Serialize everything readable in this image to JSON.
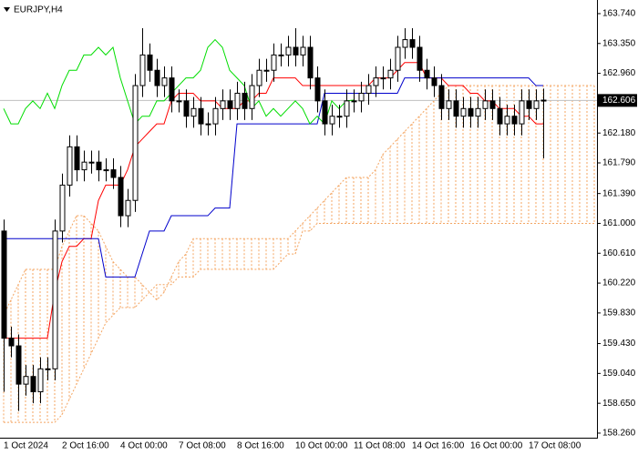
{
  "chart_data": {
    "type": "candlestick",
    "title": "EURJPY,H4",
    "categories": [
      "1 Oct 2024",
      null,
      null,
      null,
      null,
      null,
      null,
      null,
      "2 Oct 16:00",
      null,
      null,
      null,
      null,
      null,
      null,
      null,
      "4 Oct 00:00",
      null,
      null,
      null,
      null,
      null,
      null,
      null,
      "7 Oct 08:00",
      null,
      null,
      null,
      null,
      null,
      null,
      null,
      "8 Oct 16:00",
      null,
      null,
      null,
      null,
      null,
      null,
      null,
      "10 Oct 00:00",
      null,
      null,
      null,
      null,
      null,
      null,
      null,
      "11 Oct 08:00",
      null,
      null,
      null,
      null,
      null,
      null,
      null,
      "14 Oct 16:00",
      null,
      null,
      null,
      null,
      null,
      null,
      null,
      "16 Oct 00:00",
      null,
      null,
      null,
      null,
      null,
      null,
      null,
      "17 Oct 08:00",
      null,
      null,
      null,
      null,
      null,
      null,
      null,
      null,
      null
    ],
    "open": [
      160.9,
      159.5,
      159.4,
      158.9,
      159.0,
      158.8,
      159.1,
      159.1,
      160.9,
      161.5,
      162.0,
      161.7,
      161.8,
      161.8,
      161.7,
      161.7,
      161.6,
      161.1,
      161.3,
      162.8,
      163.2,
      163.0,
      162.8,
      162.9,
      162.6,
      162.6,
      162.4,
      162.5,
      162.3,
      162.3,
      162.5,
      162.6,
      162.5,
      162.7,
      162.5,
      162.8,
      163.0,
      163.0,
      163.2,
      163.2,
      163.3,
      163.2,
      163.3,
      162.9,
      162.6,
      162.3,
      162.4,
      162.4,
      162.6,
      162.6,
      162.7,
      162.8,
      162.9,
      162.9,
      163.0,
      163.3,
      163.4,
      163.3,
      163.0,
      162.9,
      162.8,
      162.5,
      162.6,
      162.4,
      162.5,
      162.4,
      162.5,
      162.6,
      162.5,
      162.3,
      162.4,
      162.3,
      162.6,
      162.5,
      162.6,
      null,
      null,
      null,
      null,
      null,
      null,
      null
    ],
    "high": [
      161.05,
      159.65,
      159.55,
      159.15,
      159.15,
      159.25,
      159.25,
      161.05,
      161.65,
      162.15,
      162.15,
      161.95,
      161.95,
      161.95,
      161.85,
      161.85,
      161.75,
      161.45,
      162.95,
      163.55,
      163.35,
      163.15,
      163.05,
      163.05,
      162.75,
      162.75,
      162.65,
      162.65,
      162.45,
      162.65,
      162.75,
      162.75,
      162.85,
      162.85,
      162.95,
      163.15,
      163.15,
      163.35,
      163.35,
      163.45,
      163.55,
      163.45,
      163.45,
      163.05,
      162.75,
      162.55,
      162.55,
      162.75,
      162.75,
      162.85,
      162.95,
      163.05,
      163.05,
      163.15,
      163.45,
      163.55,
      163.55,
      163.45,
      163.15,
      163.05,
      162.95,
      162.75,
      162.75,
      162.65,
      162.65,
      162.65,
      162.75,
      162.75,
      162.65,
      162.55,
      162.55,
      162.75,
      162.75,
      162.75,
      162.76,
      null,
      null,
      null,
      null,
      null,
      null,
      null
    ],
    "low": [
      158.8,
      159.25,
      158.55,
      158.75,
      158.65,
      158.65,
      158.95,
      158.95,
      160.75,
      161.35,
      161.55,
      161.55,
      161.65,
      161.55,
      161.55,
      161.45,
      160.95,
      160.95,
      161.15,
      162.65,
      162.85,
      162.65,
      162.65,
      162.45,
      162.45,
      162.25,
      162.25,
      162.15,
      162.15,
      162.15,
      162.35,
      162.35,
      162.35,
      162.35,
      162.35,
      162.65,
      162.85,
      162.85,
      163.05,
      163.05,
      163.05,
      163.05,
      162.75,
      162.45,
      162.15,
      162.15,
      162.25,
      162.25,
      162.45,
      162.45,
      162.55,
      162.65,
      162.75,
      162.75,
      162.85,
      163.15,
      163.15,
      162.85,
      162.75,
      162.65,
      162.35,
      162.35,
      162.25,
      162.25,
      162.25,
      162.25,
      162.35,
      162.35,
      162.15,
      162.15,
      162.15,
      162.15,
      162.35,
      162.35,
      161.85,
      null,
      null,
      null,
      null,
      null,
      null,
      null
    ],
    "close": [
      159.5,
      159.4,
      158.9,
      159.0,
      158.8,
      159.1,
      159.1,
      160.9,
      161.5,
      162.0,
      161.7,
      161.8,
      161.8,
      161.7,
      161.7,
      161.6,
      161.1,
      161.3,
      162.8,
      163.2,
      163.0,
      162.8,
      162.9,
      162.6,
      162.6,
      162.4,
      162.5,
      162.3,
      162.3,
      162.5,
      162.6,
      162.5,
      162.7,
      162.5,
      162.8,
      163.0,
      163.0,
      163.2,
      163.2,
      163.3,
      163.2,
      163.3,
      162.9,
      162.6,
      162.3,
      162.4,
      162.4,
      162.6,
      162.6,
      162.7,
      162.8,
      162.9,
      162.9,
      163.0,
      163.3,
      163.4,
      163.3,
      163.0,
      162.9,
      162.8,
      162.5,
      162.6,
      162.4,
      162.5,
      162.4,
      162.5,
      162.6,
      162.5,
      162.3,
      162.4,
      162.3,
      162.6,
      162.5,
      162.6,
      162.61,
      null,
      null,
      null,
      null,
      null,
      null,
      null
    ],
    "up_color": "#ffffff",
    "down_color": "#000000",
    "lines": [
      {
        "color": "#ff0000",
        "values": [
          159.5,
          159.5,
          159.5,
          159.5,
          159.5,
          159.5,
          159.5,
          160.1,
          160.5,
          160.7,
          160.7,
          160.8,
          160.8,
          161.3,
          161.5,
          161.5,
          161.5,
          161.7,
          162.0,
          162.1,
          162.2,
          162.3,
          162.3,
          162.6,
          162.7,
          162.7,
          162.7,
          162.6,
          162.6,
          162.6,
          162.5,
          162.5,
          162.5,
          162.6,
          162.6,
          162.7,
          162.7,
          162.9,
          162.9,
          162.9,
          162.9,
          162.8,
          162.8,
          162.8,
          162.8,
          162.8,
          162.8,
          162.8,
          162.8,
          162.8,
          162.8,
          162.9,
          162.9,
          162.9,
          163.0,
          163.1,
          163.1,
          163.1,
          162.9,
          162.9,
          162.9,
          162.8,
          162.8,
          162.8,
          162.7,
          162.7,
          162.6,
          162.6,
          162.5,
          162.5,
          162.5,
          162.4,
          162.4,
          162.3,
          162.3,
          null,
          null,
          null,
          null,
          null,
          null,
          null
        ]
      },
      {
        "color": "#0000cc",
        "values": [
          160.8,
          160.8,
          160.8,
          160.8,
          160.8,
          160.8,
          160.8,
          160.8,
          160.8,
          160.8,
          160.8,
          160.8,
          160.8,
          160.8,
          160.3,
          160.3,
          160.3,
          160.3,
          160.3,
          160.6,
          160.9,
          160.9,
          160.9,
          161.1,
          161.1,
          161.1,
          161.1,
          161.1,
          161.1,
          161.2,
          161.2,
          161.2,
          162.3,
          162.3,
          162.3,
          162.3,
          162.3,
          162.3,
          162.3,
          162.3,
          162.3,
          162.3,
          162.3,
          162.3,
          162.7,
          162.7,
          162.7,
          162.7,
          162.7,
          162.7,
          162.7,
          162.7,
          162.7,
          162.7,
          162.7,
          162.9,
          162.9,
          162.9,
          162.9,
          162.9,
          162.9,
          162.9,
          162.9,
          162.9,
          162.9,
          162.9,
          162.9,
          162.9,
          162.9,
          162.9,
          162.9,
          162.9,
          162.9,
          162.8,
          162.8,
          null,
          null,
          null,
          null,
          null,
          null,
          null
        ]
      },
      {
        "color": "#00dd00",
        "values": [
          162.5,
          162.3,
          162.3,
          162.5,
          162.6,
          162.5,
          162.7,
          162.5,
          162.8,
          163.0,
          163.0,
          163.2,
          163.2,
          163.3,
          163.2,
          163.3,
          162.9,
          162.6,
          162.3,
          162.4,
          162.4,
          162.6,
          162.6,
          162.7,
          162.8,
          162.9,
          162.9,
          163.0,
          163.3,
          163.4,
          163.3,
          163.0,
          162.9,
          162.8,
          162.5,
          162.6,
          162.4,
          162.5,
          162.4,
          162.5,
          162.6,
          162.5,
          162.3,
          162.4,
          162.3,
          162.6,
          162.5,
          162.6,
          162.61,
          null,
          null,
          null,
          null,
          null,
          null,
          null,
          null,
          null,
          null,
          null,
          null,
          null,
          null,
          null,
          null,
          null,
          null,
          null,
          null,
          null,
          null,
          null,
          null,
          null,
          null,
          null,
          null,
          null,
          null,
          null,
          null,
          null
        ]
      }
    ],
    "cloud": {
      "color": "#f4a460",
      "span_a": [
        159.8,
        160.0,
        160.2,
        160.4,
        160.4,
        160.4,
        160.4,
        160.4,
        160.7,
        160.9,
        161.1,
        161.1,
        161.0,
        160.9,
        160.7,
        160.5,
        160.4,
        160.3,
        160.3,
        160.2,
        160.1,
        160.0,
        160.1,
        160.3,
        160.5,
        160.6,
        160.8,
        160.8,
        160.8,
        160.8,
        160.8,
        160.8,
        160.8,
        160.8,
        160.8,
        160.8,
        160.8,
        160.8,
        160.8,
        160.8,
        160.9,
        161.0,
        161.1,
        161.2,
        161.3,
        161.4,
        161.5,
        161.6,
        161.6,
        161.6,
        161.6,
        161.7,
        161.9,
        162.0,
        162.1,
        162.2,
        162.3,
        162.4,
        162.5,
        162.6,
        162.7,
        162.8,
        162.8,
        162.8,
        162.8,
        162.8,
        162.8,
        162.8,
        162.8,
        162.8,
        162.8,
        162.8,
        162.8,
        162.8,
        162.8,
        162.8,
        162.8,
        162.8,
        162.8,
        162.8,
        162.8,
        162.8
      ],
      "span_b": [
        158.4,
        158.4,
        158.4,
        158.4,
        158.4,
        158.4,
        158.4,
        158.4,
        158.5,
        158.7,
        158.9,
        159.1,
        159.3,
        159.5,
        159.7,
        159.8,
        159.9,
        159.9,
        159.9,
        160.0,
        160.1,
        160.2,
        160.2,
        160.2,
        160.3,
        160.3,
        160.3,
        160.4,
        160.4,
        160.4,
        160.4,
        160.4,
        160.4,
        160.4,
        160.4,
        160.4,
        160.4,
        160.4,
        160.5,
        160.6,
        160.6,
        160.9,
        160.9,
        161.0,
        161.0,
        161.0,
        161.0,
        161.0,
        161.0,
        161.0,
        161.0,
        161.0,
        161.0,
        161.0,
        161.0,
        161.0,
        161.0,
        161.0,
        161.0,
        161.0,
        161.0,
        161.0,
        161.0,
        161.0,
        161.0,
        161.0,
        161.0,
        161.0,
        161.0,
        161.0,
        161.0,
        161.0,
        161.0,
        161.0,
        161.0,
        161.0,
        161.0,
        161.0,
        161.0,
        161.0,
        161.0,
        161.0
      ]
    },
    "current_price": 162.606,
    "current_price_color": "#c0c0c0",
    "ylim": [
      158.212,
      163.918
    ],
    "yticks": [
      {
        "value": 163.74,
        "label": "163.740"
      },
      {
        "value": 163.35,
        "label": "163.350"
      },
      {
        "value": 162.96,
        "label": "162.960"
      },
      {
        "value": 162.18,
        "label": "162.180"
      },
      {
        "value": 161.79,
        "label": "161.790"
      },
      {
        "value": 161.39,
        "label": "161.390"
      },
      {
        "value": 161,
        "label": "161.000"
      },
      {
        "value": 160.61,
        "label": "160.610"
      },
      {
        "value": 160.22,
        "label": "160.220"
      },
      {
        "value": 159.83,
        "label": "159.830"
      },
      {
        "value": 159.43,
        "label": "159.430"
      },
      {
        "value": 159.04,
        "label": "159.040"
      },
      {
        "value": 158.65,
        "label": "158.650"
      },
      {
        "value": 158.26,
        "label": "158.260"
      }
    ]
  }
}
